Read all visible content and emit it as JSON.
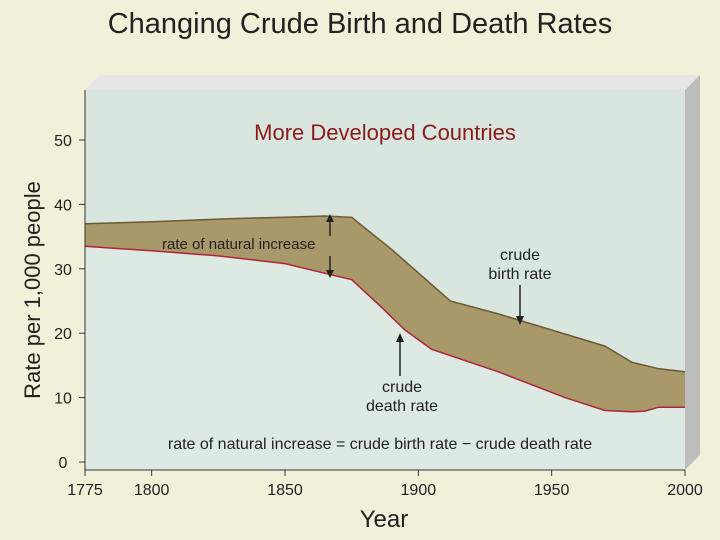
{
  "page": {
    "title": "Changing Crude Birth and Death Rates"
  },
  "chart_data": {
    "type": "area",
    "subtitle": "More Developed Countries",
    "xlabel": "Year",
    "ylabel": "Rate per 1,000 people",
    "xlim": [
      1775,
      2000
    ],
    "ylim": [
      0,
      55
    ],
    "x_ticks": [
      1775,
      1800,
      1850,
      1900,
      1950,
      2000
    ],
    "y_ticks": [
      0,
      10,
      20,
      30,
      40,
      50
    ],
    "grid": false,
    "series": [
      {
        "name": "crude birth rate",
        "x": [
          1775,
          1800,
          1830,
          1850,
          1865,
          1875,
          1890,
          1912,
          1930,
          1950,
          1970,
          1980,
          1990,
          2000
        ],
        "values": [
          37,
          37.3,
          37.8,
          38,
          38.2,
          38,
          33,
          25,
          23,
          20.5,
          18,
          15.5,
          14.5,
          14
        ]
      },
      {
        "name": "crude death rate",
        "x": [
          1775,
          1800,
          1825,
          1850,
          1865,
          1875,
          1885,
          1895,
          1905,
          1930,
          1955,
          1970,
          1980,
          1985,
          1990,
          2000
        ],
        "values": [
          33.5,
          32.8,
          32,
          30.8,
          29.3,
          28.3,
          24.5,
          20.5,
          17.5,
          14,
          10,
          8,
          7.8,
          7.9,
          8.5,
          8.5
        ]
      }
    ],
    "annotations": [
      "rate of natural increase",
      "crude",
      "birth rate",
      "crude",
      "death rate",
      "rate of natural increase = crude birth rate − crude death rate"
    ],
    "colors": {
      "page_background": "#f1f1d9",
      "plot_background": "#d9e6e0",
      "gap_fill": "#a9986a",
      "birth_line": "#6b5a33",
      "death_line": "#b0243a",
      "subtitle": "#8b1a1a",
      "panel_side": "#bfbfbf"
    }
  }
}
